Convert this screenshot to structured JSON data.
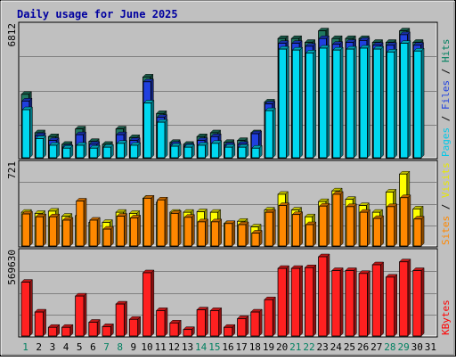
{
  "chart_data": {
    "type": "bar",
    "title": "Daily usage for June 2025",
    "categories": [
      "1",
      "2",
      "3",
      "4",
      "5",
      "6",
      "7",
      "8",
      "9",
      "10",
      "11",
      "12",
      "13",
      "14",
      "15",
      "16",
      "17",
      "18",
      "19",
      "20",
      "21",
      "22",
      "23",
      "24",
      "25",
      "26",
      "27",
      "28",
      "29",
      "30",
      "31"
    ],
    "weekend_days": [
      "1",
      "7",
      "8",
      "14",
      "15",
      "21",
      "22",
      "28",
      "29"
    ],
    "panels": [
      {
        "id": "hits",
        "ymax_label": "6812",
        "ylim": [
          0,
          6812
        ],
        "label_parts": [
          {
            "text": "Pages",
            "color": "#00c8e8"
          },
          {
            "text": " / ",
            "color": "#000000"
          },
          {
            "text": "Files",
            "color": "#2040e0"
          },
          {
            "text": " / ",
            "color": "#000000"
          },
          {
            "text": "Hits",
            "color": "#008060"
          }
        ],
        "series": [
          {
            "name": "Hits",
            "color": "#207860",
            "values": [
              3300,
              1300,
              1100,
              700,
              1500,
              850,
              700,
              1500,
              1050,
              4200,
              2300,
              800,
              700,
              1100,
              1300,
              800,
              900,
              1300,
              2900,
              6200,
              6200,
              6000,
              6600,
              6200,
              6200,
              6200,
              6000,
              6000,
              6600,
              6000,
              0
            ]
          },
          {
            "name": "Files",
            "color": "#2040e0",
            "values": [
              2950,
              1150,
              900,
              550,
              1200,
              700,
              550,
              1200,
              900,
              3950,
              2100,
              700,
              600,
              900,
              1100,
              650,
              700,
              1250,
              2800,
              5950,
              5950,
              5800,
              6200,
              5900,
              6000,
              6100,
              5850,
              5850,
              6400,
              5850,
              0
            ]
          },
          {
            "name": "Pages",
            "color": "#00d8f0",
            "values": [
              2500,
              1000,
              650,
              500,
              650,
              500,
              550,
              750,
              650,
              2850,
              1850,
              600,
              550,
              650,
              750,
              550,
              550,
              500,
              2450,
              5650,
              5600,
              5450,
              5700,
              5600,
              5650,
              5700,
              5650,
              5500,
              5950,
              5550,
              0
            ]
          }
        ]
      },
      {
        "id": "visits",
        "ymax_label": "721",
        "ylim": [
          0,
          721
        ],
        "label_parts": [
          {
            "text": "Sites",
            "color": "#ff8800"
          },
          {
            "text": " / ",
            "color": "#000000"
          },
          {
            "text": "Visits",
            "color": "#e8e800"
          }
        ],
        "series": [
          {
            "name": "Visits",
            "color": "#ffff00",
            "values": [
              300,
              290,
              310,
              265,
              270,
              210,
              210,
              300,
              290,
              425,
              390,
              300,
              300,
              305,
              300,
              200,
              220,
              170,
              320,
              460,
              320,
              260,
              395,
              490,
              415,
              360,
              300,
              480,
              640,
              330,
              0
            ]
          },
          {
            "name": "Sites",
            "color": "#ff8800",
            "values": [
              285,
              260,
              260,
              230,
              400,
              230,
              150,
              265,
              250,
              425,
              410,
              290,
              255,
              215,
              215,
              200,
              190,
              115,
              300,
              360,
              280,
              190,
              355,
              460,
              350,
              300,
              245,
              350,
              430,
              240,
              0
            ]
          }
        ]
      },
      {
        "id": "kbytes",
        "ymax_label": "569630",
        "ylim": [
          0,
          569630
        ],
        "label_parts": [
          {
            "text": "KBytes",
            "color": "#ff0000"
          }
        ],
        "series": [
          {
            "name": "KBytes",
            "color": "#ff2020",
            "values": [
              370000,
              165000,
              60000,
              60000,
              275000,
              95000,
              65000,
              220000,
              115000,
              435000,
              175000,
              90000,
              45000,
              180000,
              175000,
              60000,
              120000,
              165000,
              250000,
              465000,
              465000,
              470000,
              545000,
              450000,
              450000,
              430000,
              490000,
              405000,
              510000,
              450000,
              0
            ]
          }
        ]
      }
    ]
  }
}
